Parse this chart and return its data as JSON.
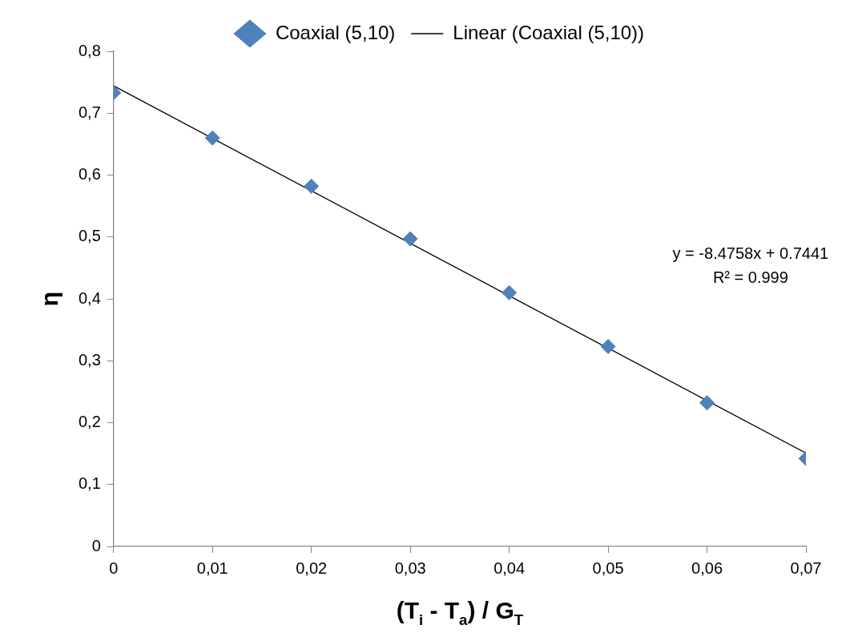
{
  "chart_data": {
    "type": "scatter",
    "xlabel": "(T$_{i}$ - T$_{a}$) / G$_{T}$",
    "ylabel": "η",
    "x": [
      0,
      0.01,
      0.02,
      0.03,
      0.04,
      0.05,
      0.06,
      0.07
    ],
    "series": [
      {
        "name": "Coaxial (5,10)",
        "color": "#4f81bd",
        "values": [
          0.733,
          0.66,
          0.582,
          0.497,
          0.41,
          0.323,
          0.232,
          0.142
        ]
      },
      {
        "name": "Linear (Coaxial (5,10))",
        "type": "line",
        "color": "#000000",
        "x": [
          0,
          0.07
        ],
        "values": [
          0.7441,
          0.1508
        ],
        "marker": "none"
      }
    ],
    "xlim": [
      0,
      0.07
    ],
    "xticks": [
      0,
      {
        "value": 0.01,
        "label": "0,01"
      },
      {
        "value": 0.02,
        "label": "0,02"
      },
      {
        "value": 0.03,
        "label": "0,03"
      },
      {
        "value": 0.04,
        "label": "0,04"
      },
      {
        "value": 0.05,
        "label": "0,05"
      },
      {
        "value": 0.06,
        "label": "0,06"
      },
      {
        "value": 0.07,
        "label": "0,07"
      }
    ],
    "ylim": [
      0,
      0.8
    ],
    "yticks": [
      0,
      {
        "value": 0.1,
        "label": "0,1"
      },
      {
        "value": 0.2,
        "label": "0,2"
      },
      {
        "value": 0.3,
        "label": "0,3"
      },
      {
        "value": 0.4,
        "label": "0,4"
      },
      {
        "value": 0.5,
        "label": "0,5"
      },
      {
        "value": 0.6,
        "label": "0,6"
      },
      {
        "value": 0.7,
        "label": "0,7"
      },
      {
        "value": 0.8,
        "label": "0,8"
      }
    ],
    "annotations": [
      "y = -8.4758x + 0.7441",
      "R² = 0.999"
    ],
    "grid": false,
    "legend": "top",
    "marker": "diamond"
  }
}
